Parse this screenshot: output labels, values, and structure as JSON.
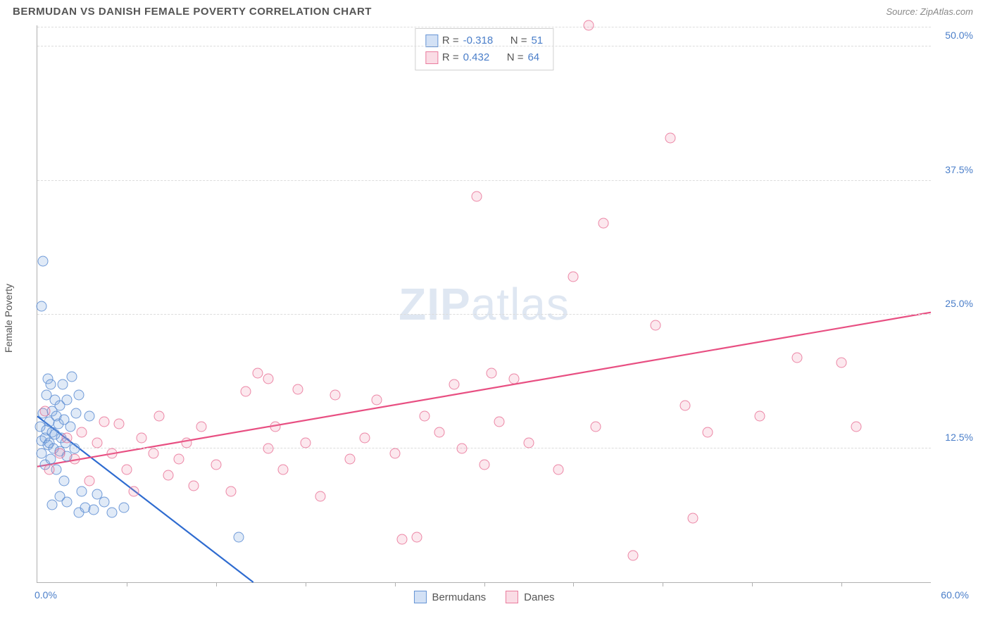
{
  "header": {
    "title": "BERMUDAN VS DANISH FEMALE POVERTY CORRELATION CHART",
    "source_prefix": "Source: ",
    "source_name": "ZipAtlas.com"
  },
  "watermark": {
    "bold": "ZIP",
    "light": "atlas"
  },
  "chart": {
    "type": "scatter",
    "ylabel": "Female Poverty",
    "xlim": [
      0,
      60
    ],
    "ylim": [
      0,
      52
    ],
    "x_origin_label": "0.0%",
    "x_max_label": "60.0%",
    "y_gridlines": [
      {
        "val": 12.5,
        "label": "12.5%"
      },
      {
        "val": 25.0,
        "label": "25.0%"
      },
      {
        "val": 37.5,
        "label": "37.5%"
      },
      {
        "val": 50.0,
        "label": "50.0%"
      }
    ],
    "x_ticks": [
      6,
      12,
      18,
      24,
      30,
      36,
      42,
      48,
      54
    ],
    "colors": {
      "blue_fill": "rgba(130,170,225,0.25)",
      "blue_stroke": "#5a8cd2",
      "pink_fill": "rgba(240,140,170,0.2)",
      "pink_stroke": "#e6648c",
      "grid": "#dcdcdc",
      "axis": "#b0b0b0",
      "tick_text": "#4a7ec9",
      "label_text": "#555555",
      "trend_blue": "#2e6bd0",
      "trend_pink": "#e84f82"
    },
    "series": [
      {
        "name": "Bermudans",
        "color_key": "blue",
        "R": "-0.318",
        "N": "51",
        "trend": {
          "x1": 0,
          "y1": 15.5,
          "x2": 14.5,
          "y2": 0
        },
        "points": [
          [
            0.2,
            14.5
          ],
          [
            0.3,
            13.2
          ],
          [
            0.3,
            12.0
          ],
          [
            0.4,
            15.8
          ],
          [
            0.5,
            13.5
          ],
          [
            0.5,
            11.0
          ],
          [
            0.6,
            17.5
          ],
          [
            0.6,
            14.2
          ],
          [
            0.7,
            12.8
          ],
          [
            0.7,
            19.0
          ],
          [
            0.8,
            15.0
          ],
          [
            0.8,
            13.0
          ],
          [
            0.9,
            18.5
          ],
          [
            0.9,
            11.5
          ],
          [
            1.0,
            16.0
          ],
          [
            1.0,
            14.0
          ],
          [
            1.1,
            12.5
          ],
          [
            1.2,
            17.0
          ],
          [
            1.2,
            13.8
          ],
          [
            1.3,
            15.5
          ],
          [
            1.3,
            10.5
          ],
          [
            1.4,
            14.8
          ],
          [
            1.5,
            12.2
          ],
          [
            1.5,
            16.5
          ],
          [
            1.6,
            13.5
          ],
          [
            1.7,
            18.5
          ],
          [
            1.8,
            15.2
          ],
          [
            1.8,
            9.5
          ],
          [
            1.9,
            13.0
          ],
          [
            2.0,
            11.8
          ],
          [
            2.0,
            17.0
          ],
          [
            2.2,
            14.5
          ],
          [
            2.3,
            19.2
          ],
          [
            2.5,
            12.5
          ],
          [
            2.6,
            15.8
          ],
          [
            2.8,
            17.5
          ],
          [
            0.3,
            25.8
          ],
          [
            0.4,
            30.0
          ],
          [
            1.0,
            7.2
          ],
          [
            1.5,
            8.0
          ],
          [
            2.0,
            7.5
          ],
          [
            2.8,
            6.5
          ],
          [
            3.0,
            8.5
          ],
          [
            3.2,
            7.0
          ],
          [
            3.5,
            15.5
          ],
          [
            3.8,
            6.8
          ],
          [
            4.0,
            8.2
          ],
          [
            4.5,
            7.5
          ],
          [
            5.0,
            6.5
          ],
          [
            5.8,
            7.0
          ],
          [
            13.5,
            4.2
          ]
        ]
      },
      {
        "name": "Danes",
        "color_key": "pink",
        "R": "0.432",
        "N": "64",
        "trend": {
          "x1": 0,
          "y1": 10.8,
          "x2": 60,
          "y2": 25.2
        },
        "points": [
          [
            0.8,
            10.5
          ],
          [
            1.5,
            12.0
          ],
          [
            2.0,
            13.5
          ],
          [
            2.5,
            11.5
          ],
          [
            3.0,
            14.0
          ],
          [
            3.5,
            9.5
          ],
          [
            4.0,
            13.0
          ],
          [
            4.5,
            15.0
          ],
          [
            5.0,
            12.0
          ],
          [
            5.5,
            14.8
          ],
          [
            6.0,
            10.5
          ],
          [
            6.5,
            8.5
          ],
          [
            7.0,
            13.5
          ],
          [
            7.8,
            12.0
          ],
          [
            8.2,
            15.5
          ],
          [
            8.8,
            10.0
          ],
          [
            9.5,
            11.5
          ],
          [
            10.0,
            13.0
          ],
          [
            10.5,
            9.0
          ],
          [
            11.0,
            14.5
          ],
          [
            12.0,
            11.0
          ],
          [
            13.0,
            8.5
          ],
          [
            14.0,
            17.8
          ],
          [
            14.8,
            19.5
          ],
          [
            15.5,
            19.0
          ],
          [
            15.5,
            12.5
          ],
          [
            16.0,
            14.5
          ],
          [
            16.5,
            10.5
          ],
          [
            17.5,
            18.0
          ],
          [
            18.0,
            13.0
          ],
          [
            19.0,
            8.0
          ],
          [
            20.0,
            17.5
          ],
          [
            21.0,
            11.5
          ],
          [
            22.0,
            13.5
          ],
          [
            22.8,
            17.0
          ],
          [
            24.0,
            12.0
          ],
          [
            24.5,
            4.0
          ],
          [
            25.5,
            4.2
          ],
          [
            26.0,
            15.5
          ],
          [
            27.0,
            14.0
          ],
          [
            28.0,
            18.5
          ],
          [
            28.5,
            12.5
          ],
          [
            29.5,
            36.0
          ],
          [
            30.0,
            11.0
          ],
          [
            30.5,
            19.5
          ],
          [
            31.0,
            15.0
          ],
          [
            32.0,
            19.0
          ],
          [
            33.0,
            13.0
          ],
          [
            35.0,
            10.5
          ],
          [
            36.0,
            28.5
          ],
          [
            37.0,
            52.0
          ],
          [
            37.5,
            14.5
          ],
          [
            38.0,
            33.5
          ],
          [
            40.0,
            2.5
          ],
          [
            41.5,
            24.0
          ],
          [
            42.5,
            41.5
          ],
          [
            43.5,
            16.5
          ],
          [
            44.0,
            6.0
          ],
          [
            45.0,
            14.0
          ],
          [
            48.5,
            15.5
          ],
          [
            51.0,
            21.0
          ],
          [
            54.0,
            20.5
          ],
          [
            55.0,
            14.5
          ],
          [
            0.5,
            16.0
          ]
        ]
      }
    ],
    "legend_labels": {
      "R": "R =",
      "N": "N ="
    },
    "bottom_legend": [
      "Bermudans",
      "Danes"
    ]
  }
}
